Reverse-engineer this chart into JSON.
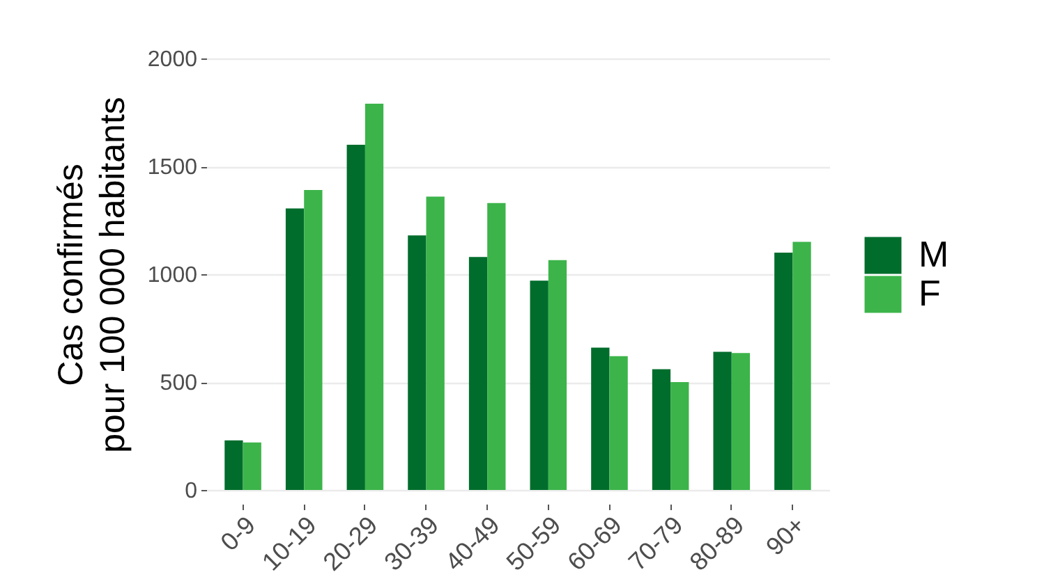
{
  "chart_data": {
    "type": "bar",
    "ylabel": "Cas confirmés\npour 100 000 habitants",
    "categories": [
      "0-9",
      "10-19",
      "20-29",
      "30-39",
      "40-49",
      "50-59",
      "60-69",
      "70-79",
      "80-89",
      "90+"
    ],
    "series": [
      {
        "name": "M",
        "color": "#006d2c",
        "values": [
          230,
          1305,
          1600,
          1180,
          1080,
          970,
          660,
          560,
          640,
          1100
        ]
      },
      {
        "name": "F",
        "color": "#3cb44a",
        "values": [
          220,
          1390,
          1790,
          1360,
          1330,
          1065,
          620,
          500,
          635,
          1150
        ]
      }
    ],
    "ylim": [
      0,
      2000
    ],
    "yticks": [
      0,
      500,
      1000,
      1500,
      2000
    ],
    "grid": "y",
    "legend": "right"
  }
}
